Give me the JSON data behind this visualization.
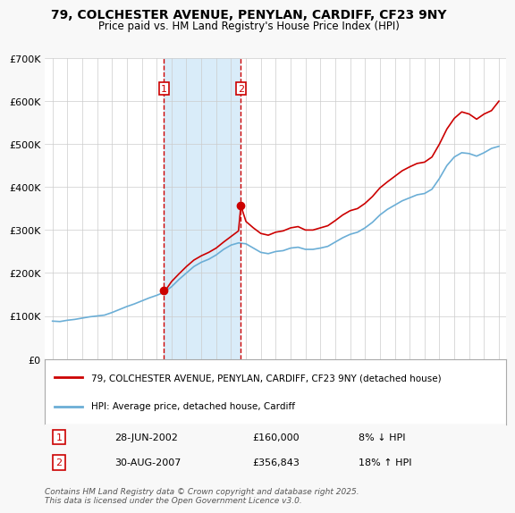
{
  "title_line1": "79, COLCHESTER AVENUE, PENYLAN, CARDIFF, CF23 9NY",
  "title_line2": "Price paid vs. HM Land Registry's House Price Index (HPI)",
  "hpi_label": "HPI: Average price, detached house, Cardiff",
  "property_label": "79, COLCHESTER AVENUE, PENYLAN, CARDIFF, CF23 9NY (detached house)",
  "hpi_color": "#6baed6",
  "property_color": "#cc0000",
  "sale1_date_num": 2002.49,
  "sale1_label": "1",
  "sale1_price": 160000,
  "sale1_date_str": "28-JUN-2002",
  "sale1_pct": "8% ↓ HPI",
  "sale2_date_num": 2007.66,
  "sale2_label": "2",
  "sale2_price": 356843,
  "sale2_date_str": "30-AUG-2007",
  "sale2_pct": "18% ↑ HPI",
  "vline1_x": 2002.49,
  "vline2_x": 2007.66,
  "shade_color": "#d0e8f8",
  "footer": "Contains HM Land Registry data © Crown copyright and database right 2025.\nThis data is licensed under the Open Government Licence v3.0.",
  "ylim_min": 0,
  "ylim_max": 700000,
  "xlim_min": 1994.5,
  "xlim_max": 2025.5,
  "background_color": "#f8f8f8",
  "plot_bg_color": "#ffffff",
  "grid_color": "#cccccc"
}
